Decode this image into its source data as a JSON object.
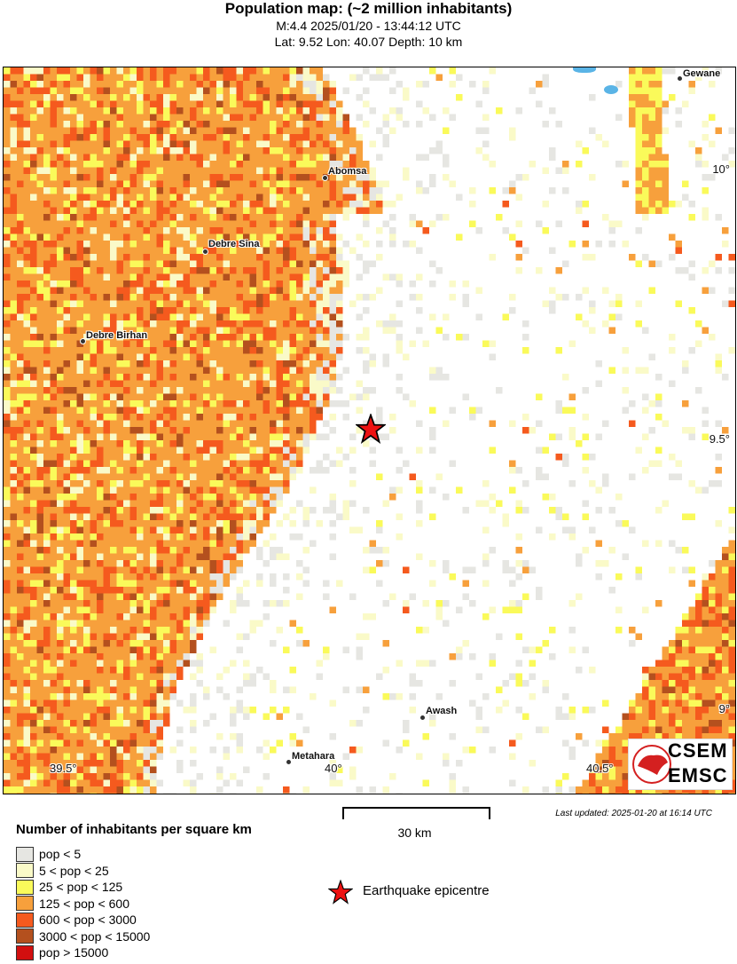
{
  "header": {
    "title": "Population map: (~2 million inhabitants)",
    "line1": "M:4.4 2025/01/20 - 13:44:12 UTC",
    "line2": "Lat: 9.52 Lon: 40.07 Depth: 10 km"
  },
  "map": {
    "epicentre": {
      "lat": 9.52,
      "lon": 40.07,
      "icon": "red-star-icon",
      "color": "#ee1111"
    },
    "cities": [
      {
        "name": "Gewane"
      },
      {
        "name": "Abomsa"
      },
      {
        "name": "Debre Sina"
      },
      {
        "name": "Debre Birhan"
      },
      {
        "name": "Awash"
      },
      {
        "name": "Metahara"
      }
    ],
    "lat_ticks": [
      "10°",
      "9.5°",
      "9°"
    ],
    "lon_ticks": [
      "39.5°",
      "40°",
      "40.5°"
    ],
    "logo": {
      "top": "CSEM",
      "bottom": "EMSC"
    }
  },
  "scale": {
    "label": "30 km"
  },
  "updated": "Last updated: 2025-01-20 at 16:14 UTC",
  "legend": {
    "title": "Number of inhabitants per square km",
    "items": [
      {
        "label": "pop < 5",
        "color": "#e6e6e2"
      },
      {
        "label": "5 < pop < 25",
        "color": "#fafac8"
      },
      {
        "label": "25 < pop < 125",
        "color": "#fafa5a"
      },
      {
        "label": "125 < pop < 600",
        "color": "#f7a03c"
      },
      {
        "label": "600 < pop < 3000",
        "color": "#f55a1e"
      },
      {
        "label": "3000 < pop < 15000",
        "color": "#b4501e"
      },
      {
        "label": "pop > 15000",
        "color": "#d20f0f"
      }
    ],
    "epicentre_label": "Earthquake epicentre"
  }
}
